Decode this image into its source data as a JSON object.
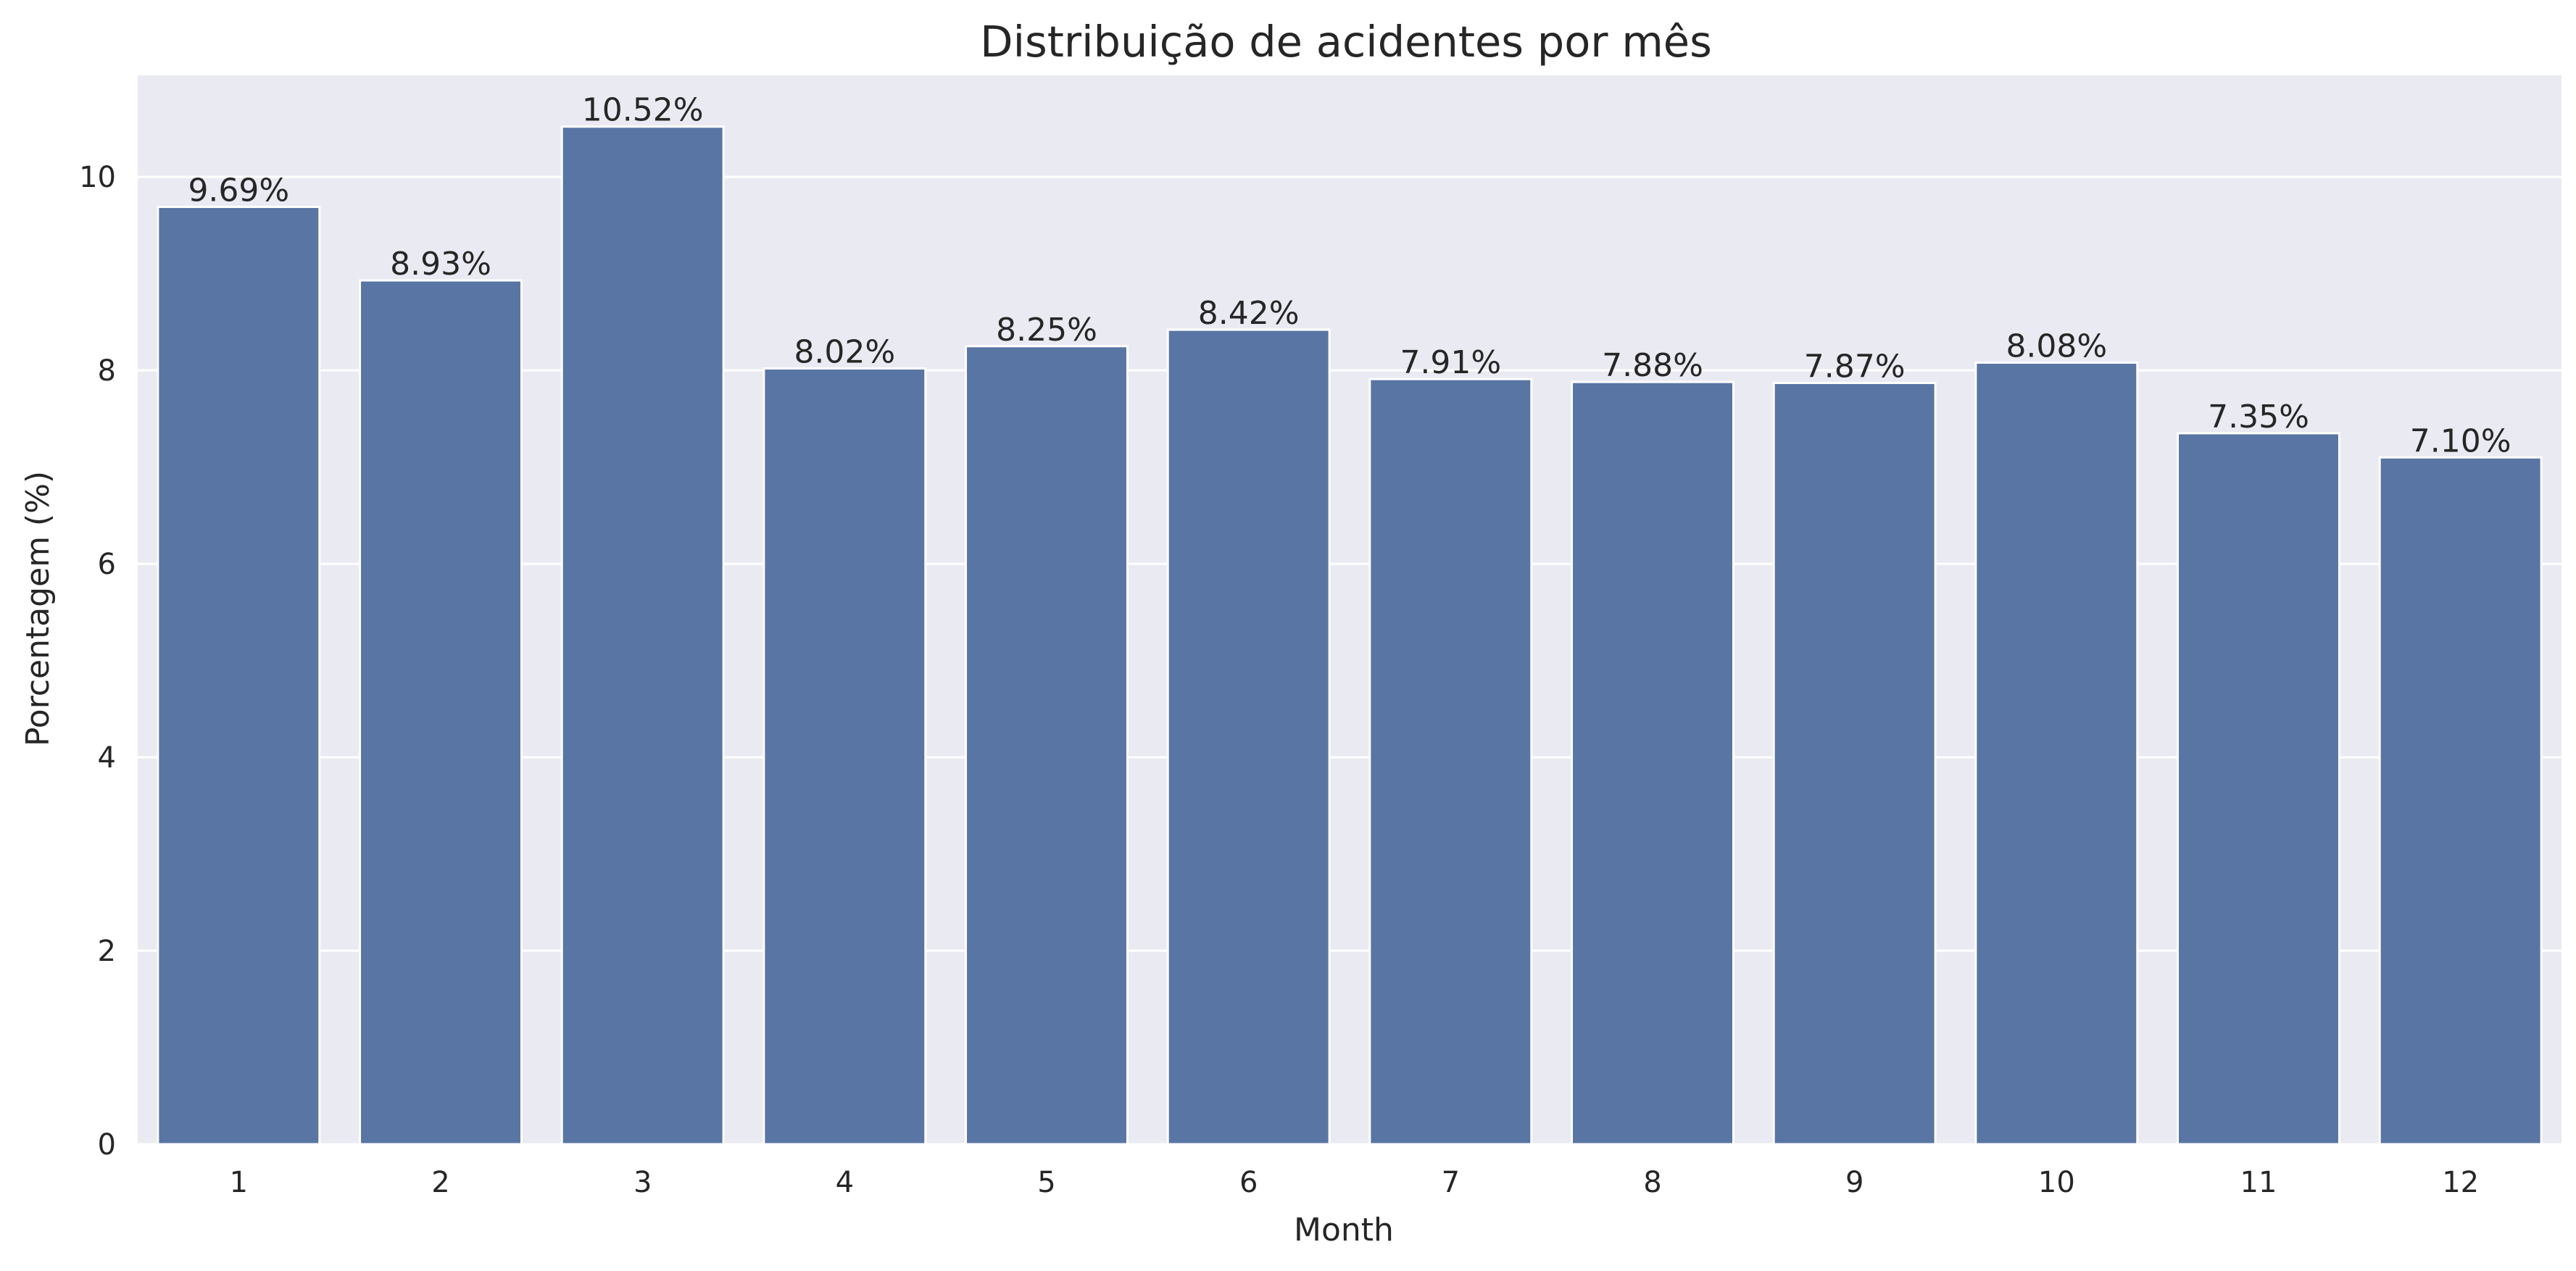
{
  "chart_data": {
    "type": "bar",
    "title": "Distribuição de acidentes por mês",
    "xlabel": "Month",
    "ylabel": "Porcentagem (%)",
    "categories": [
      "1",
      "2",
      "3",
      "4",
      "5",
      "6",
      "7",
      "8",
      "9",
      "10",
      "11",
      "12"
    ],
    "values": [
      9.69,
      8.93,
      10.52,
      8.02,
      8.25,
      8.42,
      7.91,
      7.88,
      7.87,
      8.08,
      7.35,
      7.1
    ],
    "value_labels": [
      "9.69%",
      "8.93%",
      "10.52%",
      "8.02%",
      "8.25%",
      "8.42%",
      "7.91%",
      "7.88%",
      "7.87%",
      "8.08%",
      "7.35%",
      "7.10%"
    ],
    "ylim": [
      0,
      11.05
    ],
    "yticks": [
      0,
      2,
      4,
      6,
      8,
      10
    ],
    "grid": true,
    "legend": "none",
    "colors": {
      "bar": "#5975a4",
      "background": "#eaeaf2",
      "grid": "#ffffff",
      "text": "#262626"
    }
  }
}
